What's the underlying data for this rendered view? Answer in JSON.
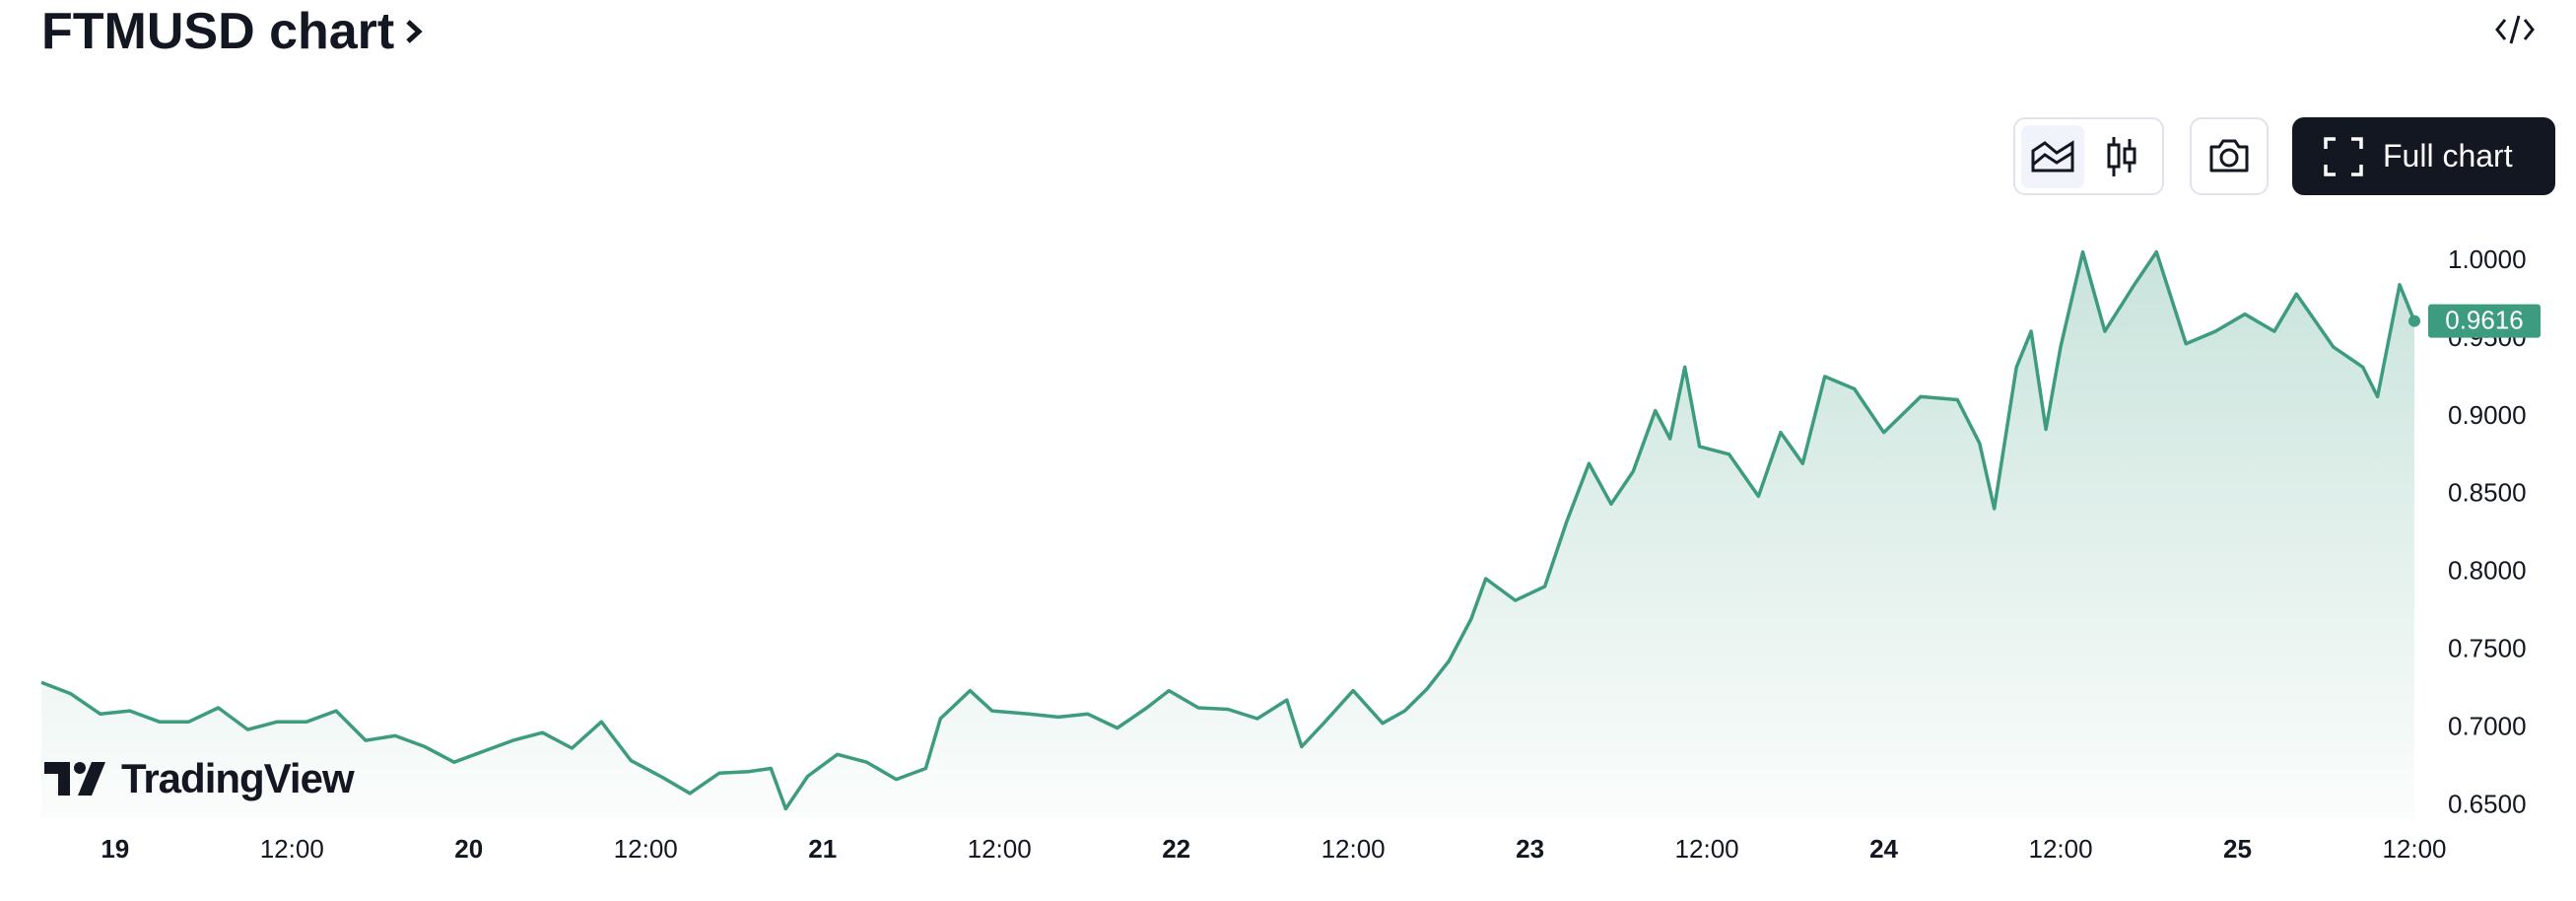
{
  "header": {
    "title": "FTMUSD chart"
  },
  "toolbar": {
    "full_chart": "Full chart"
  },
  "branding": "TradingView",
  "chart_data": {
    "type": "area",
    "x": [
      -5,
      -3,
      -1,
      1,
      3,
      5,
      7,
      9,
      11,
      13,
      15,
      17,
      19,
      21,
      23,
      25,
      27,
      29,
      31,
      33,
      35,
      37,
      39,
      41,
      43,
      44.5,
      45.5,
      47,
      49,
      51,
      53,
      55,
      56,
      58,
      59.5,
      62,
      64,
      66,
      68,
      70,
      71.5,
      73.5,
      75.5,
      77.5,
      79.5,
      80.5,
      82,
      84,
      86,
      87.5,
      89,
      90.5,
      92,
      93,
      95,
      97,
      98.5,
      100,
      101.5,
      103,
      104.5,
      105.5,
      106.5,
      107.5,
      109.5,
      111.5,
      113,
      114.5,
      116,
      118,
      120,
      122.5,
      125,
      126.5,
      127.5,
      129,
      130,
      131,
      132,
      133.5,
      135,
      137,
      138.5,
      140.5,
      142.5,
      144.5,
      146.5,
      148,
      150.5,
      152.5,
      153.5,
      155,
      156
    ],
    "values": [
      0.7293,
      0.722,
      0.709,
      0.711,
      0.704,
      0.704,
      0.713,
      0.699,
      0.704,
      0.704,
      0.711,
      0.692,
      0.695,
      0.688,
      0.678,
      0.685,
      0.692,
      0.697,
      0.687,
      0.704,
      0.679,
      0.669,
      0.658,
      0.671,
      0.672,
      0.674,
      0.648,
      0.669,
      0.683,
      0.678,
      0.667,
      0.674,
      0.706,
      0.724,
      0.711,
      0.709,
      0.707,
      0.709,
      0.7,
      0.713,
      0.724,
      0.713,
      0.712,
      0.706,
      0.718,
      0.688,
      0.703,
      0.724,
      0.703,
      0.711,
      0.725,
      0.743,
      0.77,
      0.796,
      0.782,
      0.791,
      0.833,
      0.87,
      0.844,
      0.865,
      0.904,
      0.886,
      0.932,
      0.881,
      0.876,
      0.849,
      0.89,
      0.87,
      0.926,
      0.918,
      0.89,
      0.913,
      0.911,
      0.883,
      0.841,
      0.932,
      0.955,
      0.892,
      0.945,
      1.006,
      0.955,
      0.985,
      1.006,
      0.947,
      0.955,
      0.966,
      0.955,
      0.979,
      0.945,
      0.932,
      0.913,
      0.985,
      0.9616
    ],
    "color": "#3d9b7f",
    "last_price": 0.9616,
    "xlim": [
      -5,
      156
    ],
    "ylim": [
      0.642,
      1.014
    ],
    "xticks": [
      {
        "value": 0,
        "label": "19"
      },
      {
        "value": 12,
        "label": "12:00"
      },
      {
        "value": 24,
        "label": "20"
      },
      {
        "value": 36,
        "label": "12:00"
      },
      {
        "value": 48,
        "label": "21"
      },
      {
        "value": 60,
        "label": "12:00"
      },
      {
        "value": 72,
        "label": "22"
      },
      {
        "value": 84,
        "label": "12:00"
      },
      {
        "value": 96,
        "label": "23"
      },
      {
        "value": 108,
        "label": "12:00"
      },
      {
        "value": 120,
        "label": "24"
      },
      {
        "value": 132,
        "label": "12:00"
      },
      {
        "value": 144,
        "label": "25"
      },
      {
        "value": 156,
        "label": "12:00"
      }
    ],
    "yticks": [
      {
        "value": 0.65,
        "label": "0.6500"
      },
      {
        "value": 0.7,
        "label": "0.7000"
      },
      {
        "value": 0.75,
        "label": "0.7500"
      },
      {
        "value": 0.8,
        "label": "0.8000"
      },
      {
        "value": 0.85,
        "label": "0.8500"
      },
      {
        "value": 0.9,
        "label": "0.9000"
      },
      {
        "value": 0.95,
        "label": "0.9500"
      },
      {
        "value": 1.0,
        "label": "1.0000"
      }
    ],
    "grid": false
  }
}
